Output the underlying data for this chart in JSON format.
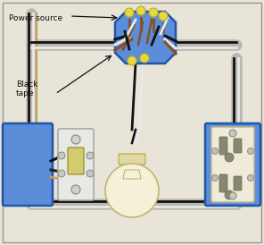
{
  "bg_color": "#e8e4d8",
  "border_color": "#aaa898",
  "title": "Power source",
  "label_fontsize": 6.5,
  "junction_box_color": "#5b8dd9",
  "junction_box_edge": "#2255aa",
  "switch_box_color": "#5b8dd9",
  "outlet_box_color": "#5b8dd9",
  "wire_gray_conduit": "#b8b8b0",
  "wire_black": "#111111",
  "wire_white": "#e8e8e8",
  "wire_brown": "#8B5020",
  "wire_bare": "#c8a050",
  "yellow_tip": "#e8d840",
  "light_globe": "#f5f0d8",
  "light_base": "#d8d090"
}
